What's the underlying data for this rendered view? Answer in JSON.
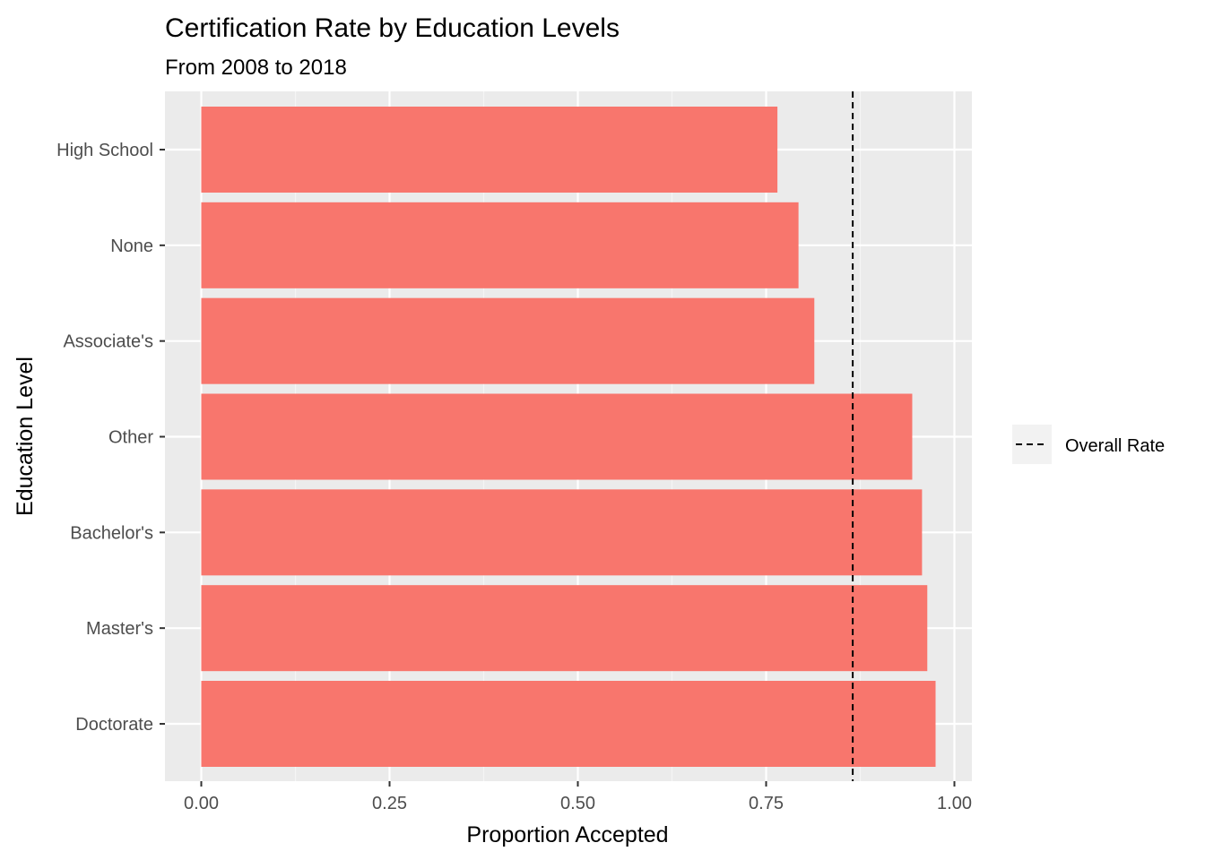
{
  "colors": {
    "panel_background": "#ebebeb",
    "grid_major": "#ffffff",
    "grid_minor": "#f5f5f5",
    "bar_fill": "#f8766d",
    "reference_line": "#000000",
    "tick_color": "#333333",
    "legend_key_background": "#f2f2f2"
  },
  "chart_data": {
    "type": "bar",
    "orientation": "horizontal",
    "title": "Certification Rate by Education Levels",
    "subtitle": "From 2008 to 2018",
    "xlabel": "Proportion Accepted",
    "ylabel": "Education Level",
    "xlim": [
      0,
      1
    ],
    "x_ticks": [
      "0.00",
      "0.25",
      "0.50",
      "0.75",
      "1.00"
    ],
    "x_tick_values": [
      0,
      0.25,
      0.5,
      0.75,
      1.0
    ],
    "categories": [
      "High School",
      "None",
      "Associate's",
      "Other",
      "Bachelor's",
      "Master's",
      "Doctorate"
    ],
    "values": [
      0.765,
      0.793,
      0.814,
      0.944,
      0.957,
      0.964,
      0.975
    ],
    "grid": true,
    "reference_line": {
      "name": "Overall Rate",
      "value": 0.865,
      "style": "dashed"
    },
    "legend": {
      "placement": "right",
      "entries": [
        "Overall Rate"
      ]
    }
  }
}
